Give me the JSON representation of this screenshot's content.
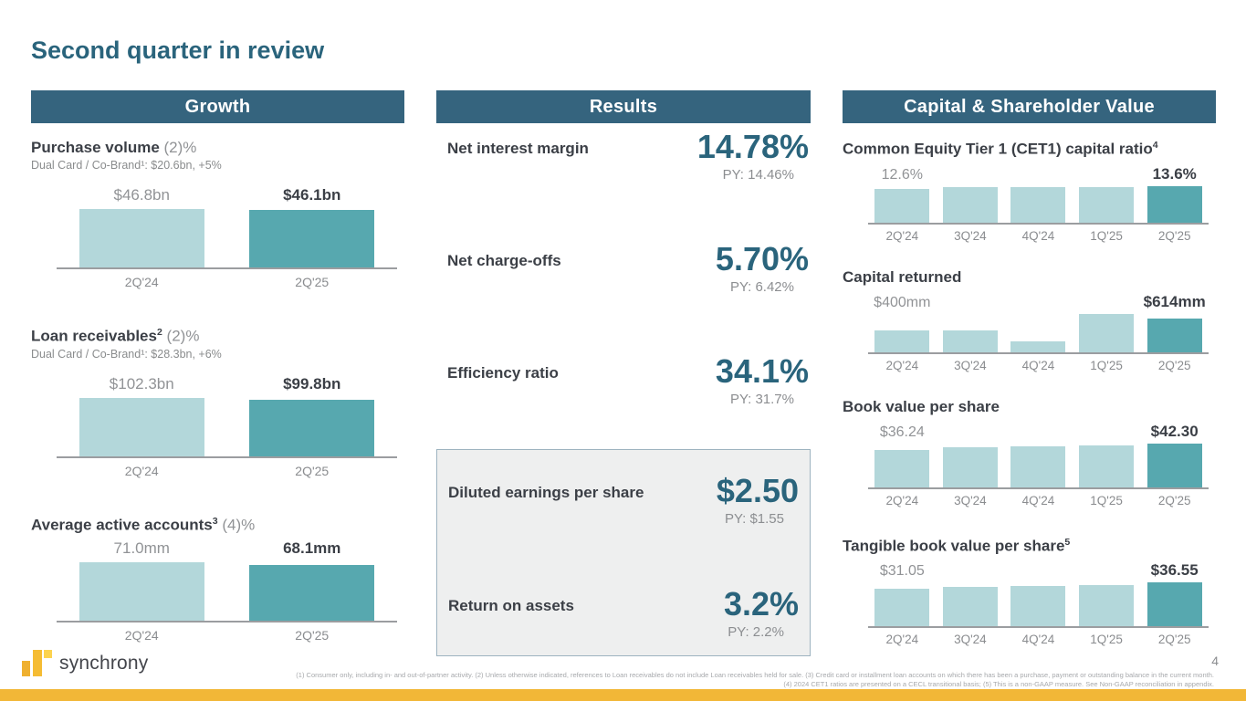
{
  "page": {
    "title": "Second quarter in review",
    "page_number": "4"
  },
  "colors": {
    "header_bg": "#35647e",
    "metric_blue": "#2a647c",
    "bar_light": "#b3d7da",
    "bar_dark": "#57a8af",
    "brand_yellow": "#f2b737"
  },
  "columns": {
    "growth": {
      "header": "Growth",
      "chart_ids": [
        0,
        1,
        2
      ]
    },
    "results": {
      "header": "Results",
      "metrics": [
        {
          "label": "Net interest margin",
          "value": "14.78%",
          "py": "PY: 14.46%"
        },
        {
          "label": "Net charge-offs",
          "value": "5.70%",
          "py": "PY: 6.42%"
        },
        {
          "label": "Efficiency ratio",
          "value": "34.1%",
          "py": "PY: 31.7%"
        }
      ],
      "boxed_metrics": [
        {
          "label": "Diluted earnings per share",
          "value": "$2.50",
          "py": "PY: $1.55"
        },
        {
          "label": "Return on assets",
          "value": "3.2%",
          "py": "PY: 2.2%"
        }
      ]
    },
    "capital": {
      "header": "Capital & Shareholder Value",
      "chart_ids": [
        3,
        4,
        5,
        6
      ]
    }
  },
  "chart_data": [
    {
      "type": "bar",
      "column": "growth",
      "title": "Purchase volume",
      "title_sup": "",
      "title_suffix": " (2)%",
      "subtitle": "Dual Card / Co-Brand¹: $20.6bn, +5%",
      "categories": [
        "2Q'24",
        "2Q'25"
      ],
      "values": [
        46.8,
        46.1
      ],
      "unit": "$bn",
      "highlight_index": 1,
      "value_labels": [
        {
          "index": 0,
          "text": "$46.8bn",
          "emphasis": false
        },
        {
          "index": 1,
          "text": "$46.1bn",
          "emphasis": true
        }
      ]
    },
    {
      "type": "bar",
      "column": "growth",
      "title": "Loan receivables",
      "title_sup": "2",
      "title_suffix": " (2)%",
      "subtitle": "Dual Card / Co-Brand¹: $28.3bn, +6%",
      "categories": [
        "2Q'24",
        "2Q'25"
      ],
      "values": [
        102.3,
        99.8
      ],
      "unit": "$bn",
      "highlight_index": 1,
      "value_labels": [
        {
          "index": 0,
          "text": "$102.3bn",
          "emphasis": false
        },
        {
          "index": 1,
          "text": "$99.8bn",
          "emphasis": true
        }
      ]
    },
    {
      "type": "bar",
      "column": "growth",
      "title": "Average active accounts",
      "title_sup": "3",
      "title_suffix": " (4)%",
      "subtitle": "",
      "categories": [
        "2Q'24",
        "2Q'25"
      ],
      "values": [
        71.0,
        68.1
      ],
      "unit": "mm",
      "highlight_index": 1,
      "value_labels": [
        {
          "index": 0,
          "text": "71.0mm",
          "emphasis": false
        },
        {
          "index": 1,
          "text": "68.1mm",
          "emphasis": true
        }
      ]
    },
    {
      "type": "bar",
      "column": "capital",
      "title": "Common Equity Tier 1 (CET1) capital ratio",
      "title_sup": "4",
      "title_suffix": "",
      "subtitle": "",
      "categories": [
        "2Q'24",
        "3Q'24",
        "4Q'24",
        "1Q'25",
        "2Q'25"
      ],
      "values": [
        12.6,
        13.1,
        13.3,
        13.2,
        13.6
      ],
      "unit": "%",
      "highlight_index": 4,
      "value_labels": [
        {
          "index": 0,
          "text": "12.6%",
          "emphasis": false
        },
        {
          "index": 4,
          "text": "13.6%",
          "emphasis": true
        }
      ]
    },
    {
      "type": "bar",
      "column": "capital",
      "title": "Capital returned",
      "title_sup": "",
      "title_suffix": "",
      "subtitle": "",
      "categories": [
        "2Q'24",
        "3Q'24",
        "4Q'24",
        "1Q'25",
        "2Q'25"
      ],
      "values": [
        400,
        400,
        200,
        700,
        614
      ],
      "unit": "$mm",
      "highlight_index": 4,
      "value_labels": [
        {
          "index": 0,
          "text": "$400mm",
          "emphasis": false
        },
        {
          "index": 4,
          "text": "$614mm",
          "emphasis": true
        }
      ]
    },
    {
      "type": "bar",
      "column": "capital",
      "title": "Book value per share",
      "title_sup": "",
      "title_suffix": "",
      "subtitle": "",
      "categories": [
        "2Q'24",
        "3Q'24",
        "4Q'24",
        "1Q'25",
        "2Q'25"
      ],
      "values": [
        36.24,
        38.5,
        39.5,
        40.5,
        42.3
      ],
      "unit": "$",
      "highlight_index": 4,
      "value_labels": [
        {
          "index": 0,
          "text": "$36.24",
          "emphasis": false
        },
        {
          "index": 4,
          "text": "$42.30",
          "emphasis": true
        }
      ]
    },
    {
      "type": "bar",
      "column": "capital",
      "title": "Tangible book value per share",
      "title_sup": "5",
      "title_suffix": "",
      "subtitle": "",
      "categories": [
        "2Q'24",
        "3Q'24",
        "4Q'24",
        "1Q'25",
        "2Q'25"
      ],
      "values": [
        31.05,
        32.5,
        33.5,
        34.5,
        36.55
      ],
      "unit": "$",
      "highlight_index": 4,
      "value_labels": [
        {
          "index": 0,
          "text": "$31.05",
          "emphasis": false
        },
        {
          "index": 4,
          "text": "$36.55",
          "emphasis": true
        }
      ]
    }
  ],
  "footer": {
    "brand": "synchrony",
    "footnote_line1": "(1) Consumer only, including in- and out-of-partner activity. (2) Unless otherwise indicated, references to Loan receivables do not include Loan receivables held for sale. (3) Credit card or installment loan accounts on which there has been a purchase, payment or outstanding balance in the current month.",
    "footnote_line2": "(4) 2024 CET1 ratios are presented on a CECL transitional basis; (5) This is a non-GAAP measure. See Non-GAAP reconciliation in appendix."
  }
}
